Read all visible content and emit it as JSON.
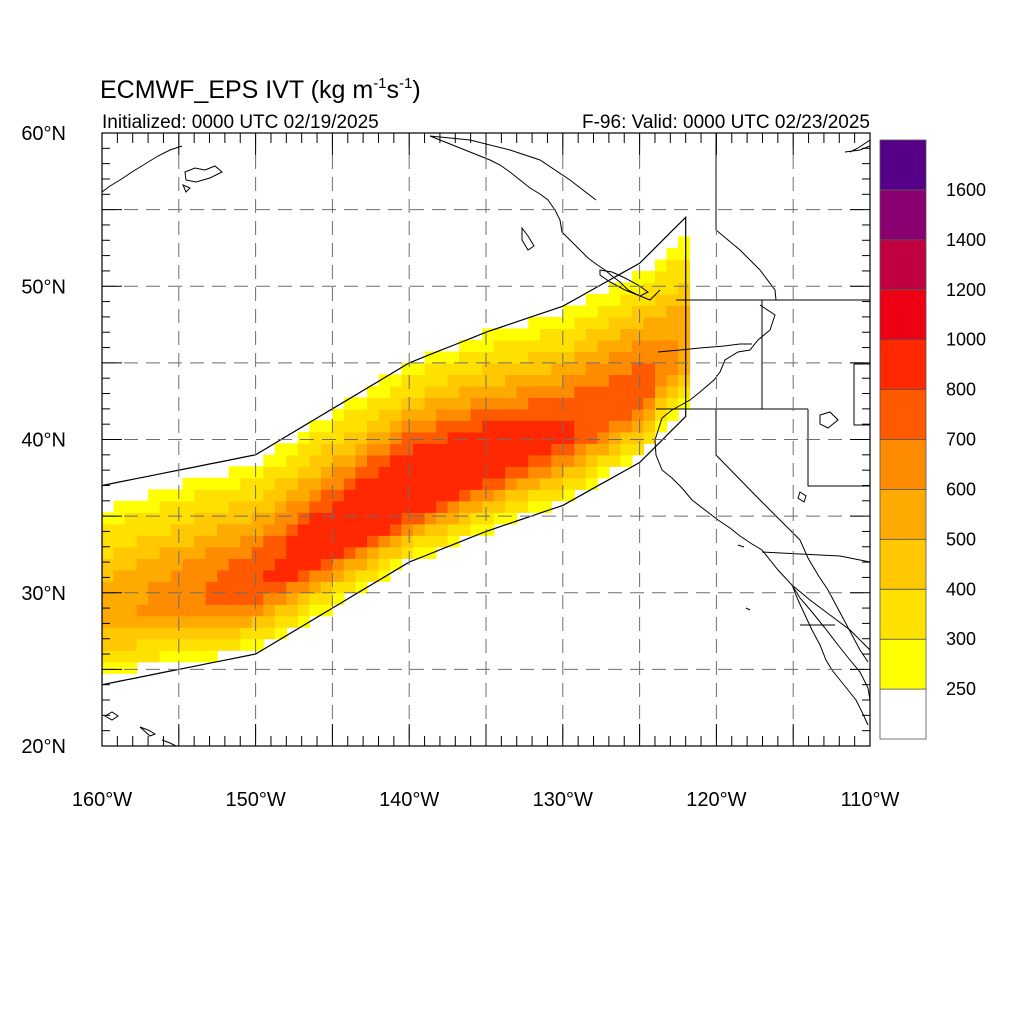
{
  "title": {
    "main": "ECMWF_EPS IVT (kg m",
    "sup1": "-1",
    "mid": "s",
    "sup2": "-1",
    "close": ")",
    "left": "Initialized: 0000 UTC 02/19/2025",
    "right": "F-96: Valid: 0000 UTC 02/23/2025"
  },
  "map": {
    "lon_range": [
      -160,
      -110
    ],
    "lat_range": [
      20,
      60
    ],
    "lon_ticks": [
      {
        "value": -160,
        "label": "160°W"
      },
      {
        "value": -150,
        "label": "150°W"
      },
      {
        "value": -140,
        "label": "140°W"
      },
      {
        "value": -130,
        "label": "130°W"
      },
      {
        "value": -120,
        "label": "120°W"
      },
      {
        "value": -110,
        "label": "110°W"
      }
    ],
    "lat_ticks": [
      {
        "value": 20,
        "label": "20°N"
      },
      {
        "value": 30,
        "label": "30°N"
      },
      {
        "value": 40,
        "label": "40°N"
      },
      {
        "value": 50,
        "label": "50°N"
      },
      {
        "value": 60,
        "label": "60°N"
      }
    ],
    "grid": true,
    "grid_style": "dashed"
  },
  "colorbar": {
    "levels": [
      "250",
      "300",
      "400",
      "500",
      "600",
      "700",
      "800",
      "1000",
      "1200",
      "1400",
      "1600"
    ],
    "colors": [
      "#ffffff",
      "#ffff00",
      "#ffe100",
      "#ffc800",
      "#ffaa00",
      "#ff8c00",
      "#ff5a00",
      "#ff2800",
      "#ee0014",
      "#c00040",
      "#8a0070",
      "#56008a"
    ]
  },
  "chart_data": {
    "type": "heatmap",
    "variable": "IVT",
    "units": "kg m-1 s-1",
    "title": "ECMWF_EPS IVT (kg m-1s-1)",
    "axis_core": [
      {
        "lon": -160,
        "lat": 28.5,
        "ivt": 380
      },
      {
        "lon": -150,
        "lat": 30.5,
        "ivt": 620
      },
      {
        "lon": -145,
        "lat": 33.5,
        "ivt": 760
      },
      {
        "lon": -140,
        "lat": 36.5,
        "ivt": 830
      },
      {
        "lon": -135,
        "lat": 38.5,
        "ivt": 760
      },
      {
        "lon": -130,
        "lat": 40.2,
        "ivt": 650
      },
      {
        "lon": -125,
        "lat": 43.0,
        "ivt": 600
      },
      {
        "lon": -122,
        "lat": 46.0,
        "ivt": 420
      }
    ],
    "outer_contour_level": 250,
    "lon_range": [
      -160,
      -110
    ],
    "lat_range": [
      20,
      60
    ]
  }
}
